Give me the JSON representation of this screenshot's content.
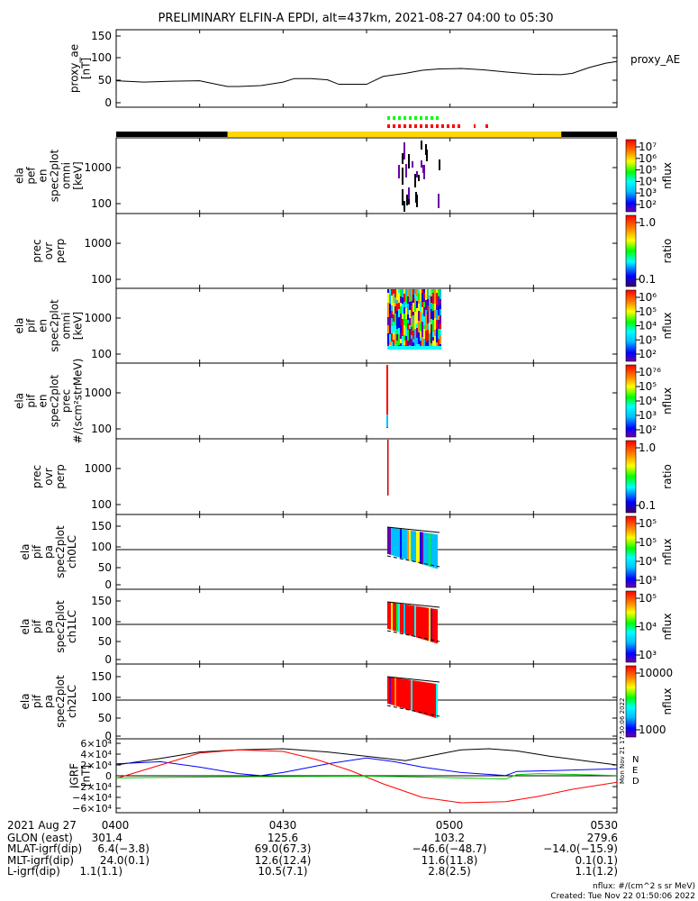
{
  "title": "PRELIMINARY ELFIN-A EPDI, alt=437km, 2021-08-27 04:00 to 05:30",
  "footer": {
    "units": "nflux: #/(cm^2 s sr MeV)",
    "created": "Created: Tue Nov 22 01:50:06 2022",
    "side_stamp": "Mon Nov 21 17:50:06 2022"
  },
  "colors": {
    "bar_dark": "#000000",
    "bar_sci": "#ffd700",
    "fgs_green": "#00ff00",
    "fgs_red": "#ff0000",
    "N": "#000000",
    "E": "#0000ff",
    "D": "#ff0000",
    "green": "#00cc00"
  },
  "panels": [
    {
      "id": "proxy_ae",
      "ylabel": [
        "proxy_ae",
        "[nT]"
      ],
      "ticks": [
        "150",
        "100",
        "50",
        "0"
      ],
      "legend": "proxy_AE"
    },
    {
      "id": "pef_en_omni",
      "ylabel": [
        "ela",
        "pef",
        "en",
        "spec2plot",
        "omni",
        "[keV]"
      ],
      "ticks": [
        "1000",
        "100"
      ],
      "cbar_type": "nflux",
      "cbar_ticks": [
        "10⁷",
        "10⁶",
        "10⁵",
        "10⁴",
        "10³",
        "10²"
      ],
      "cbar_label": "nflux"
    },
    {
      "id": "pef_prec_ovr_perp",
      "ylabel": [
        "prec",
        "ovr",
        "perp"
      ],
      "ticks": [
        "1000",
        "100"
      ],
      "cbar_type": "ratio",
      "cbar_ticks": [
        "1.0",
        "0.1"
      ],
      "cbar_label": "ratio"
    },
    {
      "id": "pif_en_omni",
      "ylabel": [
        "ela",
        "pif",
        "en",
        "spec2plot",
        "omni",
        "[keV]"
      ],
      "ticks": [
        "1000",
        "100"
      ],
      "cbar_type": "nflux",
      "cbar_ticks": [
        "10⁶",
        "10⁵",
        "10⁴",
        "10³",
        "10²"
      ],
      "cbar_label": "nflux"
    },
    {
      "id": "pif_en_prec",
      "ylabel": [
        "ela",
        "pif",
        "en",
        "spec2plot",
        "prec",
        "#/(scm²strMeV)"
      ],
      "ticks": [
        "1000",
        "100"
      ],
      "cbar_type": "nflux",
      "cbar_ticks": [
        "10⁷⁶",
        "10⁵",
        "10⁴",
        "10³",
        "10²"
      ],
      "cbar_label": "nflux"
    },
    {
      "id": "pif_prec_ovr_perp",
      "ylabel": [
        "prec",
        "ovr",
        "perp"
      ],
      "ticks": [
        "1000",
        "100"
      ],
      "cbar_type": "ratio",
      "cbar_ticks": [
        "1.0",
        "0.1"
      ],
      "cbar_label": "ratio"
    },
    {
      "id": "pa_ch0LC",
      "ylabel": [
        "ela",
        "pif",
        "pa",
        "spec2plot",
        "ch0LC"
      ],
      "ticks": [
        "150",
        "100",
        "50",
        "0"
      ],
      "cbar_type": "nflux",
      "cbar_ticks": [
        "10⁵",
        "10⁵",
        "10⁴",
        "10³"
      ],
      "cbar_label": "nflux"
    },
    {
      "id": "pa_ch1LC",
      "ylabel": [
        "ela",
        "pif",
        "pa",
        "spec2plot",
        "ch1LC"
      ],
      "ticks": [
        "150",
        "100",
        "50",
        "0"
      ],
      "cbar_type": "nflux",
      "cbar_ticks": [
        "10⁵",
        "10⁴",
        "10³"
      ],
      "cbar_label": "nflux"
    },
    {
      "id": "pa_ch2LC",
      "ylabel": [
        "ela",
        "pif",
        "pa",
        "spec2plot",
        "ch2LC"
      ],
      "ticks": [
        "150",
        "100",
        "50",
        "0"
      ],
      "cbar_type": "nflux",
      "cbar_ticks": [
        "10000",
        "1000"
      ],
      "cbar_label": "nflux"
    },
    {
      "id": "igrf",
      "ylabel": [
        "IGRF",
        "[nT]"
      ],
      "ticks": [
        "6×10⁴",
        "4×10⁴",
        "2×10⁴",
        "0",
        "−2×10⁴",
        "−4×10⁴",
        "−6×10⁴"
      ],
      "legend": [
        "N",
        "E",
        "D"
      ]
    }
  ],
  "orbit_table": {
    "date_label": "2021 Aug 27",
    "times": [
      "0400",
      "0430",
      "0500",
      "0530"
    ],
    "rows": [
      {
        "label": "GLON (east)",
        "values": [
          "301.4",
          "125.6",
          "103.2",
          "279.6"
        ]
      },
      {
        "label": "MLAT-igrf(dip)",
        "values": [
          "6.4(−3.8)",
          "69.0(67.3)",
          "−46.6(−48.7)",
          "−14.0(−15.9)"
        ]
      },
      {
        "label": "MLT-igrf(dip)",
        "values": [
          "24.0(0.1)",
          "12.6(12.4)",
          "11.6(11.8)",
          "0.1(0.1)"
        ]
      },
      {
        "label": "L-igrf(dip)",
        "values": [
          "1.1(1.1)",
          "10.5(7.1)",
          "2.8(2.5)",
          "1.1(1.2)"
        ]
      }
    ]
  },
  "chart_data": {
    "type": "line",
    "x_unit": "minutes after 04:00 UT",
    "xlim": [
      0,
      90
    ],
    "proxy_ae": {
      "ylim": [
        0,
        150
      ],
      "x": [
        0,
        5,
        10,
        15,
        18,
        20,
        22,
        26,
        30,
        32,
        35,
        38,
        40,
        45,
        48,
        52,
        55,
        58,
        62,
        66,
        70,
        75,
        80,
        82,
        85,
        88,
        90
      ],
      "y": [
        48,
        45,
        47,
        48,
        40,
        35,
        35,
        37,
        45,
        53,
        53,
        50,
        40,
        40,
        58,
        65,
        72,
        75,
        76,
        73,
        68,
        63,
        62,
        65,
        78,
        88,
        92
      ]
    },
    "science_zone_minutes": [
      20,
      80
    ],
    "igrf": {
      "ylim": [
        -60000,
        60000
      ],
      "series": [
        {
          "name": "N",
          "x": [
            0,
            8,
            15,
            22,
            30,
            38,
            45,
            52,
            58,
            62,
            67,
            72,
            78,
            84,
            90
          ],
          "y": [
            20000,
            32000,
            44000,
            48000,
            50000,
            44000,
            36000,
            28000,
            40000,
            48000,
            50000,
            46000,
            36000,
            28000,
            20000
          ]
        },
        {
          "name": "E",
          "x": [
            0,
            8,
            15,
            22,
            26,
            30,
            38,
            45,
            50,
            55,
            62,
            70,
            72,
            80,
            90
          ],
          "y": [
            22000,
            26000,
            16000,
            4000,
            200,
            6000,
            22000,
            33000,
            26000,
            16000,
            6000,
            500,
            8000,
            10000,
            13000
          ]
        },
        {
          "name": "D",
          "x": [
            0,
            8,
            15,
            22,
            30,
            36,
            42,
            48,
            55,
            62,
            70,
            76,
            82,
            90
          ],
          "y": [
            -5000,
            20000,
            42000,
            48000,
            45000,
            30000,
            10000,
            -15000,
            -40000,
            -50000,
            -48000,
            -38000,
            -25000,
            -12000
          ]
        },
        {
          "name": "green",
          "x": [
            0,
            10,
            20,
            30,
            40,
            45,
            50,
            55,
            60,
            66,
            70,
            72,
            76,
            82,
            90
          ],
          "y": [
            -4000,
            -3000,
            -2000,
            -1500,
            -1000,
            -800,
            -1500,
            -2500,
            -3500,
            -5000,
            -6000,
            2000,
            4000,
            2500,
            500
          ]
        }
      ]
    }
  }
}
